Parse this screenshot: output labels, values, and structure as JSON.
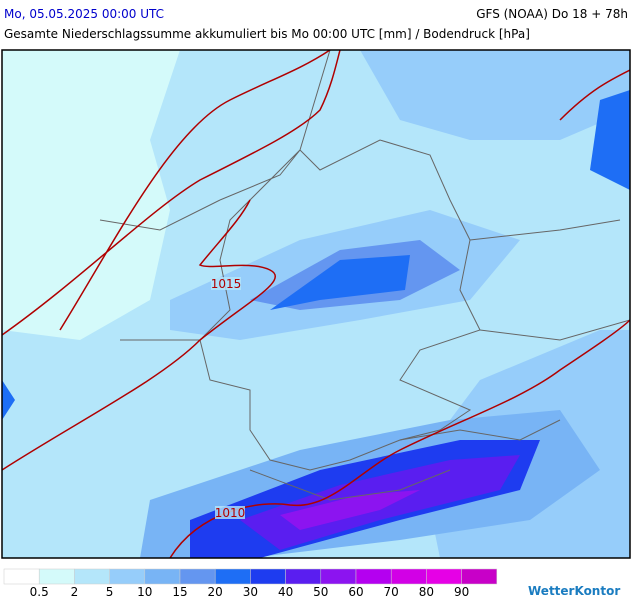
{
  "header": {
    "date": "Mo, 05.05.2025 00:00 UTC",
    "model": "GFS (NOAA) Do 18 + 78h",
    "subtitle": "Gesamte Niederschlagssumme akkumuliert bis Mo 00:00 UTC [mm] / Bodendruck [hPa]"
  },
  "isobars": [
    1015,
    1010
  ],
  "legend": {
    "colors": [
      "#ffffff",
      "#d4fafa",
      "#b4e6fa",
      "#96cdfa",
      "#78b4f5",
      "#6496f0",
      "#1e6ef5",
      "#1e3cf0",
      "#5a1ef0",
      "#8c14f0",
      "#b400f0",
      "#d200e6",
      "#e600e6",
      "#c800c8"
    ],
    "labels": [
      0.5,
      2,
      5,
      10,
      15,
      20,
      30,
      40,
      50,
      60,
      70,
      80,
      90
    ]
  },
  "brand": "WetterKontor"
}
